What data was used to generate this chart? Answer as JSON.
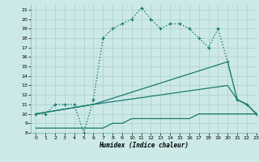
{
  "xlabel": "Humidex (Indice chaleur)",
  "xlim": [
    -0.5,
    23
  ],
  "ylim": [
    8,
    21.5
  ],
  "yticks": [
    8,
    9,
    10,
    11,
    12,
    13,
    14,
    15,
    16,
    17,
    18,
    19,
    20,
    21
  ],
  "xticks": [
    0,
    1,
    2,
    3,
    4,
    5,
    6,
    7,
    8,
    9,
    10,
    11,
    12,
    13,
    14,
    15,
    16,
    17,
    18,
    19,
    20,
    21,
    22,
    23
  ],
  "bg_color": "#cce9e7",
  "grid_color": "#aed4d1",
  "line_color": "#1a7a6e",
  "line1_x": [
    0,
    1,
    2,
    3,
    4,
    5,
    6,
    7,
    8,
    9,
    10,
    11,
    12,
    13,
    14,
    15,
    16,
    17,
    18,
    19,
    20,
    21,
    22,
    23
  ],
  "line1_y": [
    10,
    10,
    11,
    11,
    11,
    8,
    11.5,
    18,
    19,
    19.5,
    20,
    21.2,
    20,
    19,
    19.5,
    19.5,
    19,
    18,
    17,
    19,
    15.5,
    11.5,
    11,
    10
  ],
  "line2_x": [
    0,
    6,
    20,
    21,
    22,
    23
  ],
  "line2_y": [
    10,
    11,
    15.5,
    11.5,
    11,
    10
  ],
  "line3_x": [
    0,
    6,
    20,
    21,
    22,
    23
  ],
  "line3_y": [
    10,
    11,
    13,
    11.5,
    11,
    10
  ],
  "line4_x": [
    0,
    6,
    7,
    8,
    9,
    10,
    11,
    12,
    13,
    14,
    15,
    16,
    17,
    18,
    19,
    20,
    21,
    22,
    23
  ],
  "line4_y": [
    8.5,
    8.5,
    8.5,
    9,
    9,
    9.5,
    9.5,
    9.5,
    9.5,
    9.5,
    9.5,
    9.5,
    10,
    10,
    10,
    10,
    10,
    10,
    10
  ]
}
